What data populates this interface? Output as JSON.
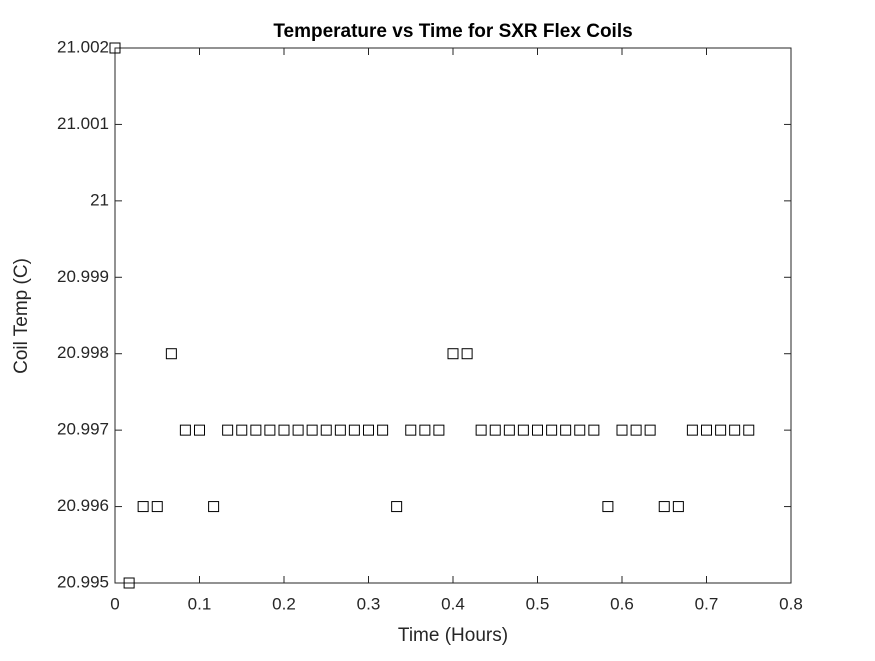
{
  "chart_data": {
    "type": "scatter",
    "title": "Temperature vs Time for SXR Flex Coils",
    "x_label": "Time (Hours)",
    "y_label": "Coil Temp (C)",
    "x": [
      0,
      0.0167,
      0.0333,
      0.05,
      0.0667,
      0.0833,
      0.1,
      0.1167,
      0.1333,
      0.15,
      0.1667,
      0.1833,
      0.2,
      0.2167,
      0.2333,
      0.25,
      0.2667,
      0.2833,
      0.3,
      0.3167,
      0.3333,
      0.35,
      0.3667,
      0.3833,
      0.4,
      0.4167,
      0.4333,
      0.45,
      0.4667,
      0.4833,
      0.5,
      0.5167,
      0.5333,
      0.55,
      0.5667,
      0.5833,
      0.6,
      0.6167,
      0.6333,
      0.65,
      0.6667,
      0.6833,
      0.7,
      0.7167,
      0.7333,
      0.75
    ],
    "series": [
      {
        "name": "Coil Temp",
        "color": "#000000",
        "values": [
          21.002,
          20.995,
          20.996,
          20.996,
          20.998,
          20.997,
          20.997,
          20.996,
          20.997,
          20.997,
          20.997,
          20.997,
          20.997,
          20.997,
          20.997,
          20.997,
          20.997,
          20.997,
          20.997,
          20.997,
          20.996,
          20.997,
          20.997,
          20.997,
          20.998,
          20.998,
          20.997,
          20.997,
          20.997,
          20.997,
          20.997,
          20.997,
          20.997,
          20.997,
          20.997,
          20.996,
          20.997,
          20.997,
          20.997,
          20.996,
          20.996,
          20.997,
          20.997,
          20.997,
          20.997,
          20.997
        ]
      }
    ],
    "xlim": [
      0,
      0.8
    ],
    "xticks": [
      0,
      0.1,
      0.2,
      0.3,
      0.4,
      0.5,
      0.6,
      0.7,
      0.8
    ],
    "ylim": [
      20.995,
      21.002
    ],
    "yticks": [
      20.995,
      20.996,
      20.997,
      20.998,
      20.999,
      21,
      21.001,
      21.002
    ],
    "grid": false,
    "marker": "square"
  }
}
